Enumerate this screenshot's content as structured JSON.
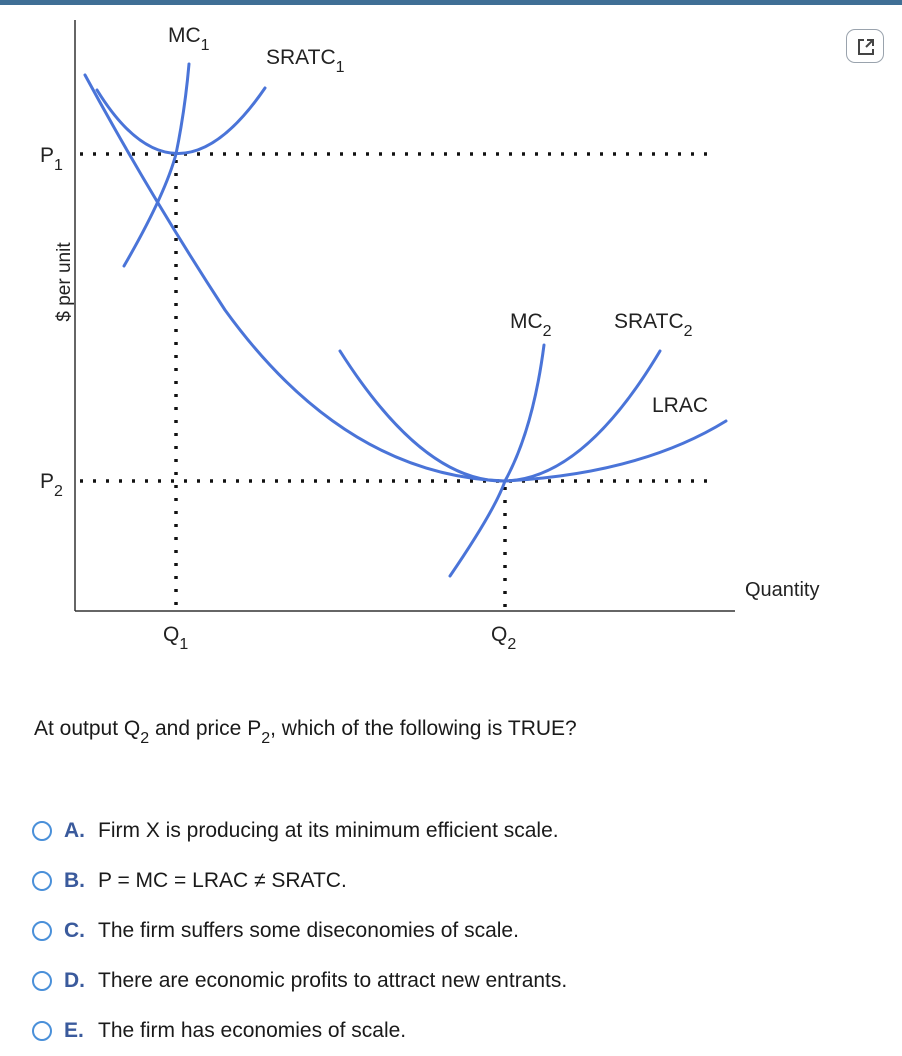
{
  "graph": {
    "y_axis_label": "$ per unit",
    "x_axis_label": "Quantity",
    "labels": {
      "p": "P",
      "p1_sub": "1",
      "p2_sub": "2",
      "q": "Q",
      "q1_sub": "1",
      "q2_sub": "2",
      "mc": "MC",
      "mc1_sub": "1",
      "mc2_sub": "2",
      "sratc": "SRATC",
      "sratc1_sub": "1",
      "sratc2_sub": "2",
      "lrac": "LRAC"
    },
    "curve_color": "#4a74d8"
  },
  "question": {
    "before": "At output Q",
    "q_sub": "2",
    "middle": " and price P",
    "p_sub": "2",
    "after": ", which of the following is TRUE?"
  },
  "options": [
    {
      "letter": "A.",
      "text": "Firm X is producing at its minimum efficient scale."
    },
    {
      "letter": "B.",
      "text": "P = MC = LRAC ≠ SRATC."
    },
    {
      "letter": "C.",
      "text": "The firm suffers some diseconomies of scale."
    },
    {
      "letter": "D.",
      "text": "There are economic profits to attract new entrants."
    },
    {
      "letter": "E.",
      "text": "The firm has economies of scale."
    }
  ],
  "icons": {
    "popout": "external-link-icon"
  }
}
